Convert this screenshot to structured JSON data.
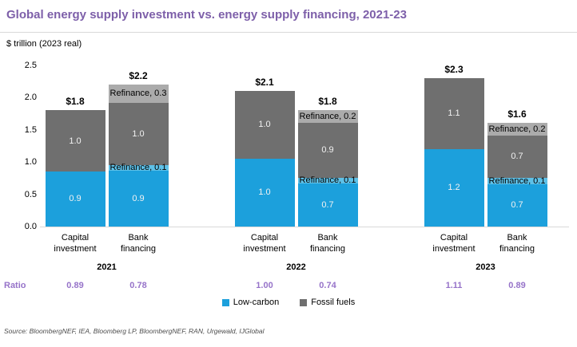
{
  "title": "Global energy supply investment vs. energy supply financing, 2021-23",
  "unit_label": "$ trillion (2023 real)",
  "ratio_row_label": "Ratio",
  "source": "Source: BloombergNEF, IEA, Bloomberg LP, BloombergNEF, RAN, Urgewald, IJGlobal",
  "colors": {
    "title": "#7D5FA9",
    "ratio": "#9673C9",
    "axis_line": "#D9D9D9",
    "low_carbon": "#1CA0DC",
    "low_carbon_refinance": "#5EC1E8",
    "fossil_fuels": "#6F6F6F",
    "fossil_fuels_refinance": "#ABABAB"
  },
  "chart_data": {
    "type": "bar",
    "stacked": true,
    "title": "Global energy supply investment vs. energy supply financing, 2021-23",
    "ylabel": "$ trillion (2023 real)",
    "ylim": [
      0,
      2.5
    ],
    "yticks": [
      0.0,
      0.5,
      1.0,
      1.5,
      2.0,
      2.5
    ],
    "grid": false,
    "legend_position": "bottom",
    "legend": [
      {
        "label": "Low-carbon",
        "series": "low-carbon",
        "color": "#1CA0DC"
      },
      {
        "label": "Fossil fuels",
        "series": "fossil",
        "color": "#6F6F6F"
      }
    ],
    "segment_colors": {
      "low-carbon": "#1CA0DC",
      "low-carbon-refinance": "#5EC1E8",
      "fossil": "#6F6F6F",
      "fossil-refinance": "#ABABAB"
    },
    "groups": [
      {
        "year": "2021",
        "bars": [
          {
            "category": "Capital investment",
            "label_lines": [
              "Capital",
              "investment"
            ],
            "total": 1.8,
            "total_label": "$1.8",
            "ratio": "0.89",
            "segments": [
              {
                "series": "low-carbon",
                "value": 0.9,
                "label": "0.9",
                "label_style": "inside"
              },
              {
                "series": "fossil",
                "value": 1.0,
                "label": "1.0",
                "label_style": "inside"
              }
            ]
          },
          {
            "category": "Bank financing",
            "label_lines": [
              "Bank",
              "financing"
            ],
            "total": 2.2,
            "total_label": "$2.2",
            "ratio": "0.78",
            "segments": [
              {
                "series": "low-carbon",
                "value": 0.9,
                "label": "0.9",
                "label_style": "inside"
              },
              {
                "series": "low-carbon-refinance",
                "value": 0.1,
                "label": "Refinance, 0.1",
                "label_style": "overlay"
              },
              {
                "series": "fossil",
                "value": 1.0,
                "label": "1.0",
                "label_style": "inside"
              },
              {
                "series": "fossil-refinance",
                "value": 0.3,
                "label": "Refinance, 0.3",
                "label_style": "overlay"
              }
            ]
          }
        ]
      },
      {
        "year": "2022",
        "bars": [
          {
            "category": "Capital investment",
            "label_lines": [
              "Capital",
              "investment"
            ],
            "total": 2.1,
            "total_label": "$2.1",
            "ratio": "1.00",
            "segments": [
              {
                "series": "low-carbon",
                "value": 1.0,
                "label": "1.0",
                "label_style": "inside"
              },
              {
                "series": "fossil",
                "value": 1.0,
                "label": "1.0",
                "label_style": "inside"
              }
            ]
          },
          {
            "category": "Bank financing",
            "label_lines": [
              "Bank",
              "financing"
            ],
            "total": 1.8,
            "total_label": "$1.8",
            "ratio": "0.74",
            "segments": [
              {
                "series": "low-carbon",
                "value": 0.7,
                "label": "0.7",
                "label_style": "inside"
              },
              {
                "series": "low-carbon-refinance",
                "value": 0.1,
                "label": "Refinance, 0.1",
                "label_style": "overlay"
              },
              {
                "series": "fossil",
                "value": 0.9,
                "label": "0.9",
                "label_style": "inside"
              },
              {
                "series": "fossil-refinance",
                "value": 0.2,
                "label": "Refinance, 0.2",
                "label_style": "overlay"
              }
            ]
          }
        ]
      },
      {
        "year": "2023",
        "bars": [
          {
            "category": "Capital investment",
            "label_lines": [
              "Capital",
              "investment"
            ],
            "total": 2.3,
            "total_label": "$2.3",
            "ratio": "1.11",
            "segments": [
              {
                "series": "low-carbon",
                "value": 1.2,
                "label": "1.2",
                "label_style": "inside"
              },
              {
                "series": "fossil",
                "value": 1.1,
                "label": "1.1",
                "label_style": "inside"
              }
            ]
          },
          {
            "category": "Bank financing",
            "label_lines": [
              "Bank",
              "financing"
            ],
            "total": 1.6,
            "total_label": "$1.6",
            "ratio": "0.89",
            "segments": [
              {
                "series": "low-carbon",
                "value": 0.7,
                "label": "0.7",
                "label_style": "inside"
              },
              {
                "series": "low-carbon-refinance",
                "value": 0.1,
                "label": "Refinance, 0.1",
                "label_style": "overlay"
              },
              {
                "series": "fossil",
                "value": 0.7,
                "label": "0.7",
                "label_style": "inside"
              },
              {
                "series": "fossil-refinance",
                "value": 0.2,
                "label": "Refinance, 0.2",
                "label_style": "overlay"
              }
            ]
          }
        ]
      }
    ]
  }
}
